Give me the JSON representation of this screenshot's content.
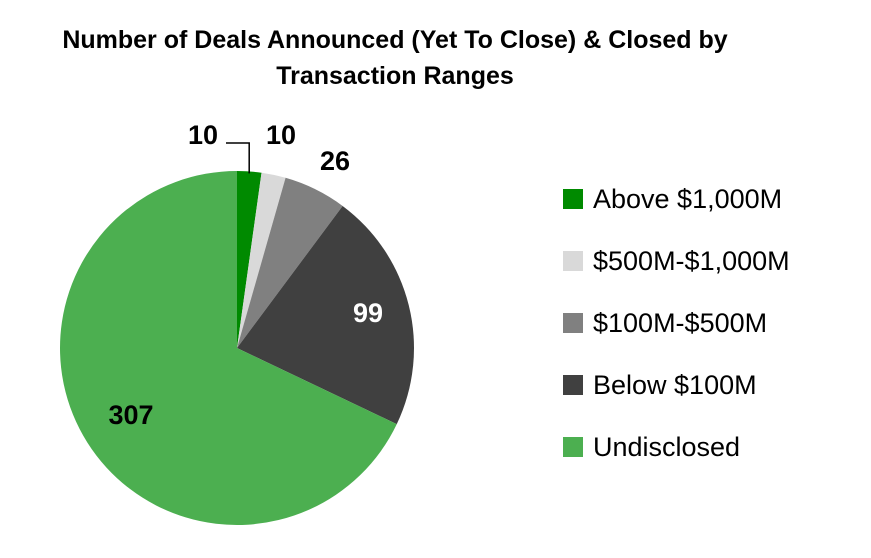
{
  "chart_data": {
    "type": "pie",
    "title_line1": "Number of Deals Announced (Yet To Close) & Closed by",
    "title_line2": "Transaction Ranges",
    "categories": [
      "Above $1,000M",
      "$500M-$1,000M",
      "$100M-$500M",
      "Below $100M",
      "Undisclosed"
    ],
    "values": [
      10,
      10,
      26,
      99,
      307
    ],
    "colors": [
      "#008a00",
      "#d9d9d9",
      "#808080",
      "#404040",
      "#4caf50"
    ],
    "data_labels": [
      "10",
      "10",
      "26",
      "99",
      "307"
    ],
    "legend_position": "right"
  }
}
